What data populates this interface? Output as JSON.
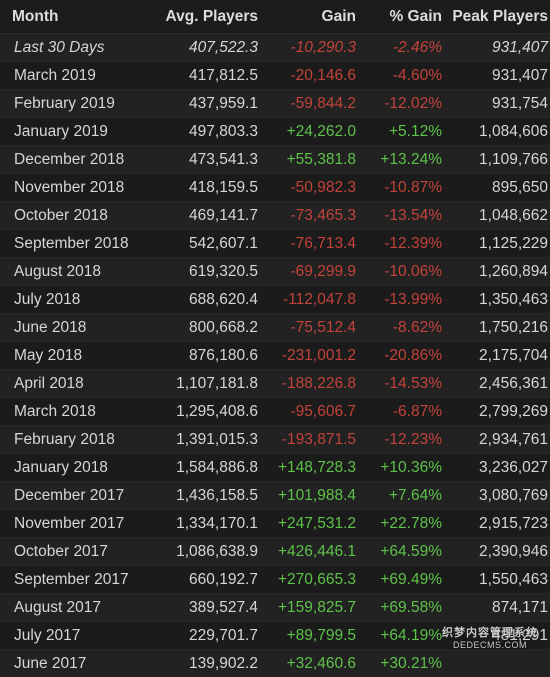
{
  "table": {
    "headers": {
      "month": "Month",
      "avg": "Avg. Players",
      "gain": "Gain",
      "pct": "% Gain",
      "peak": "Peak Players"
    },
    "rows": [
      {
        "month": "Last 30 Days",
        "avg": "407,522.3",
        "gain": "-10,290.3",
        "pct": "-2.46%",
        "peak": "931,407",
        "trend": "neg",
        "italic": true
      },
      {
        "month": "March 2019",
        "avg": "417,812.5",
        "gain": "-20,146.6",
        "pct": "-4.60%",
        "peak": "931,407",
        "trend": "neg"
      },
      {
        "month": "February 2019",
        "avg": "437,959.1",
        "gain": "-59,844.2",
        "pct": "-12.02%",
        "peak": "931,754",
        "trend": "neg"
      },
      {
        "month": "January 2019",
        "avg": "497,803.3",
        "gain": "+24,262.0",
        "pct": "+5.12%",
        "peak": "1,084,606",
        "trend": "pos"
      },
      {
        "month": "December 2018",
        "avg": "473,541.3",
        "gain": "+55,381.8",
        "pct": "+13.24%",
        "peak": "1,109,766",
        "trend": "pos"
      },
      {
        "month": "November 2018",
        "avg": "418,159.5",
        "gain": "-50,982.3",
        "pct": "-10.87%",
        "peak": "895,650",
        "trend": "neg"
      },
      {
        "month": "October 2018",
        "avg": "469,141.7",
        "gain": "-73,465.3",
        "pct": "-13.54%",
        "peak": "1,048,662",
        "trend": "neg"
      },
      {
        "month": "September 2018",
        "avg": "542,607.1",
        "gain": "-76,713.4",
        "pct": "-12.39%",
        "peak": "1,125,229",
        "trend": "neg"
      },
      {
        "month": "August 2018",
        "avg": "619,320.5",
        "gain": "-69,299.9",
        "pct": "-10.06%",
        "peak": "1,260,894",
        "trend": "neg"
      },
      {
        "month": "July 2018",
        "avg": "688,620.4",
        "gain": "-112,047.8",
        "pct": "-13.99%",
        "peak": "1,350,463",
        "trend": "neg"
      },
      {
        "month": "June 2018",
        "avg": "800,668.2",
        "gain": "-75,512.4",
        "pct": "-8.62%",
        "peak": "1,750,216",
        "trend": "neg"
      },
      {
        "month": "May 2018",
        "avg": "876,180.6",
        "gain": "-231,001.2",
        "pct": "-20.86%",
        "peak": "2,175,704",
        "trend": "neg"
      },
      {
        "month": "April 2018",
        "avg": "1,107,181.8",
        "gain": "-188,226.8",
        "pct": "-14.53%",
        "peak": "2,456,361",
        "trend": "neg"
      },
      {
        "month": "March 2018",
        "avg": "1,295,408.6",
        "gain": "-95,606.7",
        "pct": "-6.87%",
        "peak": "2,799,269",
        "trend": "neg"
      },
      {
        "month": "February 2018",
        "avg": "1,391,015.3",
        "gain": "-193,871.5",
        "pct": "-12.23%",
        "peak": "2,934,761",
        "trend": "neg"
      },
      {
        "month": "January 2018",
        "avg": "1,584,886.8",
        "gain": "+148,728.3",
        "pct": "+10.36%",
        "peak": "3,236,027",
        "trend": "pos"
      },
      {
        "month": "December 2017",
        "avg": "1,436,158.5",
        "gain": "+101,988.4",
        "pct": "+7.64%",
        "peak": "3,080,769",
        "trend": "pos"
      },
      {
        "month": "November 2017",
        "avg": "1,334,170.1",
        "gain": "+247,531.2",
        "pct": "+22.78%",
        "peak": "2,915,723",
        "trend": "pos"
      },
      {
        "month": "October 2017",
        "avg": "1,086,638.9",
        "gain": "+426,446.1",
        "pct": "+64.59%",
        "peak": "2,390,946",
        "trend": "pos"
      },
      {
        "month": "September 2017",
        "avg": "660,192.7",
        "gain": "+270,665.3",
        "pct": "+69.49%",
        "peak": "1,550,463",
        "trend": "pos"
      },
      {
        "month": "August 2017",
        "avg": "389,527.4",
        "gain": "+159,825.7",
        "pct": "+69.58%",
        "peak": "874,171",
        "trend": "pos"
      },
      {
        "month": "July 2017",
        "avg": "229,701.7",
        "gain": "+89,799.5",
        "pct": "+64.19%",
        "peak": "481,291",
        "trend": "pos"
      },
      {
        "month": "June 2017",
        "avg": "139,902.2",
        "gain": "+32,460.6",
        "pct": "+30.21%",
        "peak": "",
        "trend": "pos"
      }
    ]
  },
  "colors": {
    "positive": "#5ec24a",
    "negative": "#c2433a",
    "background": "#1b1b1b"
  },
  "watermark": {
    "logo": "织梦内容管理系统",
    "url": "DEDECMS.COM"
  }
}
